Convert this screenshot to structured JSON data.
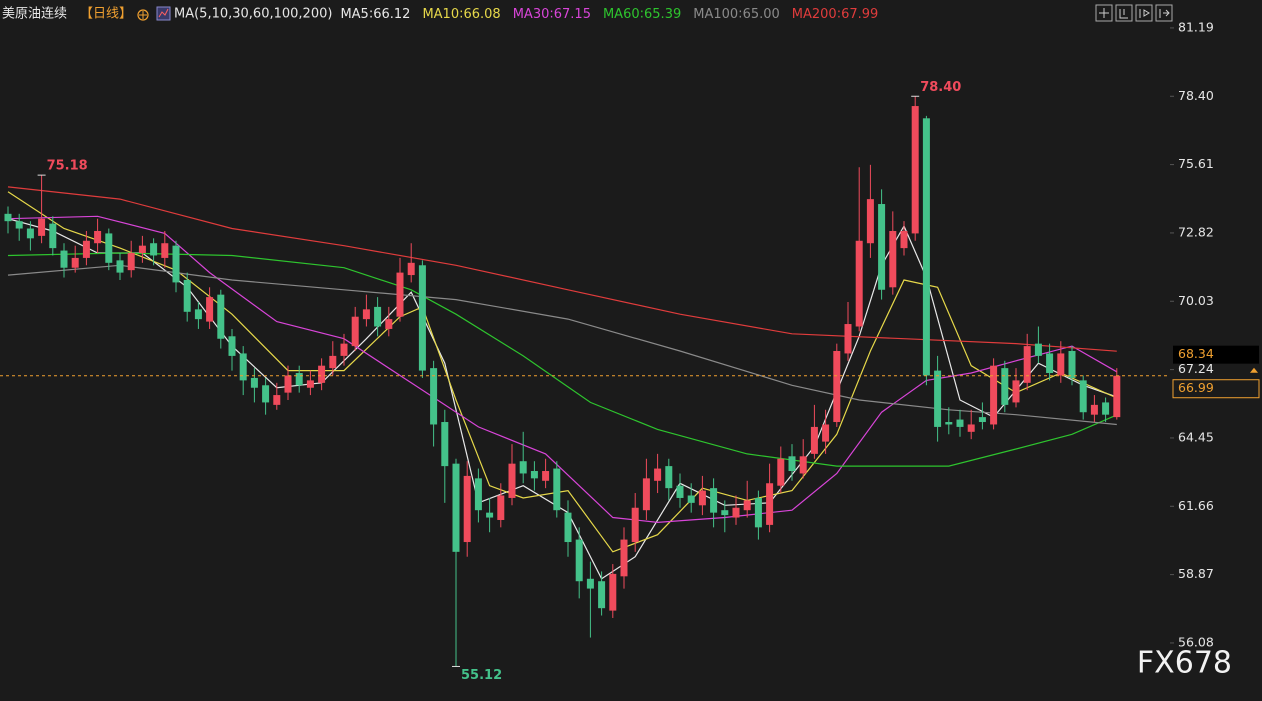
{
  "chart_data": {
    "type": "candlestick",
    "title": "美原油连续",
    "period": "【日线】",
    "ma_label": "MA(5,10,30,60,100,200)",
    "watermark": "FX678",
    "up_color": "#f04b5c",
    "down_color": "#44c28a",
    "ylim": [
      53.71,
      82.33
    ],
    "yticks": [
      81.19,
      {
        "value": 78.4,
        "label": "78.40"
      },
      75.61,
      72.82,
      70.03,
      67.24,
      64.45,
      61.66,
      58.87,
      56.08
    ],
    "open": [
      73.6,
      73.3,
      73.0,
      72.7,
      73.2,
      72.1,
      71.4,
      71.8,
      72.4,
      72.8,
      71.7,
      71.3,
      72.0,
      72.4,
      71.8,
      72.3,
      70.9,
      69.7,
      69.2,
      70.3,
      68.6,
      67.9,
      66.9,
      66.6,
      65.8,
      66.3,
      67.1,
      66.5,
      66.7,
      67.3,
      67.8,
      68.2,
      69.3,
      69.8,
      68.9,
      69.4,
      71.1,
      71.5,
      67.3,
      65.1,
      63.4,
      60.2,
      62.8,
      61.4,
      61.1,
      62.0,
      63.5,
      63.1,
      62.7,
      63.2,
      61.4,
      60.3,
      58.7,
      58.6,
      57.4,
      58.8,
      60.2,
      61.5,
      62.7,
      63.3,
      62.5,
      62.1,
      61.7,
      62.4,
      61.5,
      61.2,
      61.5,
      62.0,
      60.9,
      62.5,
      63.7,
      63.0,
      63.8,
      64.3,
      65.1,
      67.9,
      69.0,
      72.4,
      74.0,
      70.6,
      72.2,
      72.8,
      77.5,
      67.2,
      65.1,
      65.2,
      64.7,
      65.3,
      65.0,
      67.3,
      65.9,
      66.7,
      68.3,
      67.9,
      67.0,
      68.0,
      66.8,
      65.4,
      65.9,
      65.3
    ],
    "high": [
      73.9,
      73.6,
      73.3,
      75.18,
      73.5,
      72.4,
      72.3,
      72.9,
      73.4,
      73.0,
      72.0,
      72.5,
      72.7,
      72.6,
      72.9,
      72.5,
      71.2,
      70.0,
      70.6,
      70.5,
      68.9,
      68.2,
      67.3,
      66.9,
      66.7,
      67.4,
      67.4,
      67.2,
      67.7,
      68.4,
      68.7,
      69.8,
      70.3,
      70.2,
      69.8,
      71.8,
      72.4,
      71.7,
      67.6,
      65.6,
      63.6,
      63.5,
      63.2,
      62.0,
      62.6,
      64.2,
      64.7,
      63.5,
      63.6,
      63.5,
      61.9,
      60.8,
      59.4,
      59.0,
      59.3,
      60.8,
      62.2,
      63.6,
      63.8,
      63.6,
      63.0,
      62.6,
      62.9,
      62.8,
      61.9,
      62.1,
      62.7,
      62.3,
      63.4,
      64.1,
      64.2,
      64.4,
      65.8,
      65.6,
      68.3,
      70.0,
      75.5,
      75.6,
      74.6,
      73.7,
      73.3,
      78.4,
      77.6,
      67.8,
      65.7,
      65.6,
      65.6,
      65.9,
      67.7,
      67.6,
      67.3,
      68.7,
      69.0,
      68.3,
      68.4,
      68.2,
      67.0,
      66.2,
      66.1,
      67.3
    ],
    "low": [
      72.8,
      72.5,
      72.1,
      72.4,
      71.9,
      71.0,
      71.2,
      71.5,
      72.0,
      71.3,
      70.9,
      71.0,
      71.6,
      71.5,
      71.4,
      70.4,
      69.2,
      68.9,
      68.9,
      68.1,
      67.2,
      66.2,
      65.9,
      65.4,
      65.6,
      66.0,
      66.3,
      66.2,
      66.4,
      67.0,
      67.4,
      68.0,
      69.0,
      68.6,
      68.6,
      69.2,
      70.8,
      66.9,
      64.1,
      61.8,
      55.12,
      59.6,
      61.0,
      60.6,
      60.8,
      61.7,
      62.6,
      62.3,
      62.4,
      61.2,
      59.6,
      57.9,
      56.3,
      57.2,
      57.1,
      58.3,
      59.8,
      61.1,
      62.2,
      61.9,
      61.6,
      61.4,
      61.3,
      60.8,
      60.6,
      60.9,
      61.2,
      60.3,
      60.6,
      62.2,
      62.7,
      62.8,
      63.6,
      63.8,
      64.9,
      67.6,
      68.8,
      71.8,
      70.1,
      70.3,
      71.9,
      72.5,
      66.6,
      64.3,
      64.6,
      64.5,
      64.4,
      64.8,
      64.8,
      65.5,
      65.7,
      66.4,
      67.5,
      66.8,
      66.7,
      66.6,
      65.2,
      65.1,
      65.1,
      65.2
    ],
    "close": [
      73.3,
      73.0,
      72.6,
      73.4,
      72.2,
      71.4,
      71.8,
      72.5,
      72.9,
      71.6,
      71.2,
      72.0,
      72.3,
      71.9,
      72.4,
      70.8,
      69.6,
      69.3,
      70.2,
      68.5,
      67.8,
      66.8,
      66.5,
      65.9,
      66.2,
      67.0,
      66.6,
      66.8,
      67.4,
      67.8,
      68.3,
      69.4,
      69.7,
      69.0,
      69.3,
      71.2,
      71.6,
      67.2,
      65.0,
      63.3,
      59.8,
      62.9,
      61.5,
      61.2,
      62.1,
      63.4,
      63.0,
      62.8,
      63.1,
      61.5,
      60.2,
      58.6,
      58.3,
      57.5,
      58.9,
      60.3,
      61.6,
      62.8,
      63.2,
      62.4,
      62.0,
      61.8,
      62.3,
      61.4,
      61.3,
      61.6,
      61.9,
      60.8,
      62.6,
      63.6,
      63.1,
      63.7,
      64.9,
      65.0,
      68.0,
      69.1,
      72.5,
      74.2,
      70.5,
      72.9,
      72.9,
      78.0,
      67.0,
      64.9,
      65.0,
      64.9,
      65.0,
      65.1,
      67.4,
      65.8,
      66.8,
      68.2,
      67.8,
      67.1,
      67.9,
      66.9,
      65.5,
      65.8,
      65.4,
      66.99
    ],
    "annotations": [
      {
        "index": 3,
        "value": 75.18,
        "label": "75.18",
        "color": "#f04b5c"
      },
      {
        "index": 81,
        "value": 78.4,
        "label": "78.40",
        "color": "#f04b5c"
      },
      {
        "index": 40,
        "value": 55.12,
        "label": "55.12",
        "color": "#44c28a"
      }
    ],
    "series": [
      {
        "name": "MA5",
        "legend_value": 66.12,
        "color": "#e8e8e8",
        "x": [
          0,
          4,
          8,
          12,
          16,
          20,
          24,
          28,
          32,
          36,
          39,
          42,
          46,
          50,
          53,
          56,
          60,
          64,
          68,
          72,
          76,
          78,
          80,
          82,
          85,
          88,
          92,
          96,
          99
        ],
        "values": [
          73.4,
          72.9,
          72.0,
          72.0,
          70.6,
          68.2,
          66.5,
          66.7,
          68.5,
          70.4,
          67.5,
          61.8,
          62.5,
          61.4,
          58.7,
          59.6,
          62.6,
          61.7,
          61.8,
          64.1,
          68.6,
          71.5,
          73.1,
          71.0,
          66.0,
          65.3,
          67.5,
          66.6,
          66.12
        ]
      },
      {
        "name": "MA10",
        "legend_value": 66.08,
        "color": "#e6d84a",
        "x": [
          0,
          5,
          10,
          15,
          20,
          25,
          30,
          35,
          37,
          40,
          43,
          46,
          50,
          54,
          58,
          62,
          66,
          70,
          74,
          77,
          80,
          83,
          86,
          90,
          94,
          99
        ],
        "values": [
          74.5,
          73.0,
          72.2,
          71.3,
          69.5,
          67.2,
          67.2,
          69.4,
          69.8,
          66.0,
          62.5,
          62.0,
          62.3,
          59.8,
          60.5,
          62.4,
          61.9,
          62.3,
          64.6,
          68.0,
          70.9,
          70.6,
          67.4,
          66.3,
          67.1,
          66.08
        ]
      },
      {
        "name": "MA30",
        "legend_value": 67.15,
        "color": "#d845d8",
        "x": [
          0,
          8,
          14,
          18,
          24,
          30,
          36,
          42,
          48,
          54,
          58,
          64,
          70,
          74,
          78,
          82,
          86,
          90,
          95,
          99
        ],
        "values": [
          73.4,
          73.5,
          72.8,
          71.2,
          69.2,
          68.5,
          66.7,
          64.9,
          63.8,
          61.2,
          61.0,
          61.2,
          61.5,
          63.0,
          65.5,
          66.8,
          67.1,
          67.6,
          68.2,
          67.15
        ]
      },
      {
        "name": "MA60",
        "legend_value": 65.39,
        "color": "#2ec42e",
        "x": [
          0,
          10,
          20,
          30,
          36,
          40,
          46,
          52,
          58,
          66,
          74,
          84,
          90,
          95,
          99
        ],
        "values": [
          71.9,
          72.0,
          71.9,
          71.4,
          70.5,
          69.5,
          67.8,
          65.9,
          64.8,
          63.8,
          63.3,
          63.3,
          64.0,
          64.6,
          65.39
        ]
      },
      {
        "name": "MA100",
        "legend_value": 65.0,
        "legend_label": "65.00",
        "color": "#8a8a8a",
        "x": [
          0,
          10,
          20,
          30,
          40,
          50,
          60,
          70,
          76,
          84,
          90,
          99
        ],
        "values": [
          71.1,
          71.5,
          70.9,
          70.5,
          70.1,
          69.3,
          68.0,
          66.6,
          66.0,
          65.6,
          65.4,
          65.0
        ]
      },
      {
        "name": "MA200",
        "legend_value": 67.99,
        "color": "#e03c3c",
        "x": [
          0,
          10,
          20,
          30,
          40,
          50,
          60,
          70,
          80,
          90,
          99
        ],
        "values": [
          74.7,
          74.2,
          73.0,
          72.3,
          71.5,
          70.5,
          69.5,
          68.7,
          68.5,
          68.3,
          67.99
        ]
      }
    ],
    "last_price": 66.99,
    "highlight_price": 68.34
  }
}
